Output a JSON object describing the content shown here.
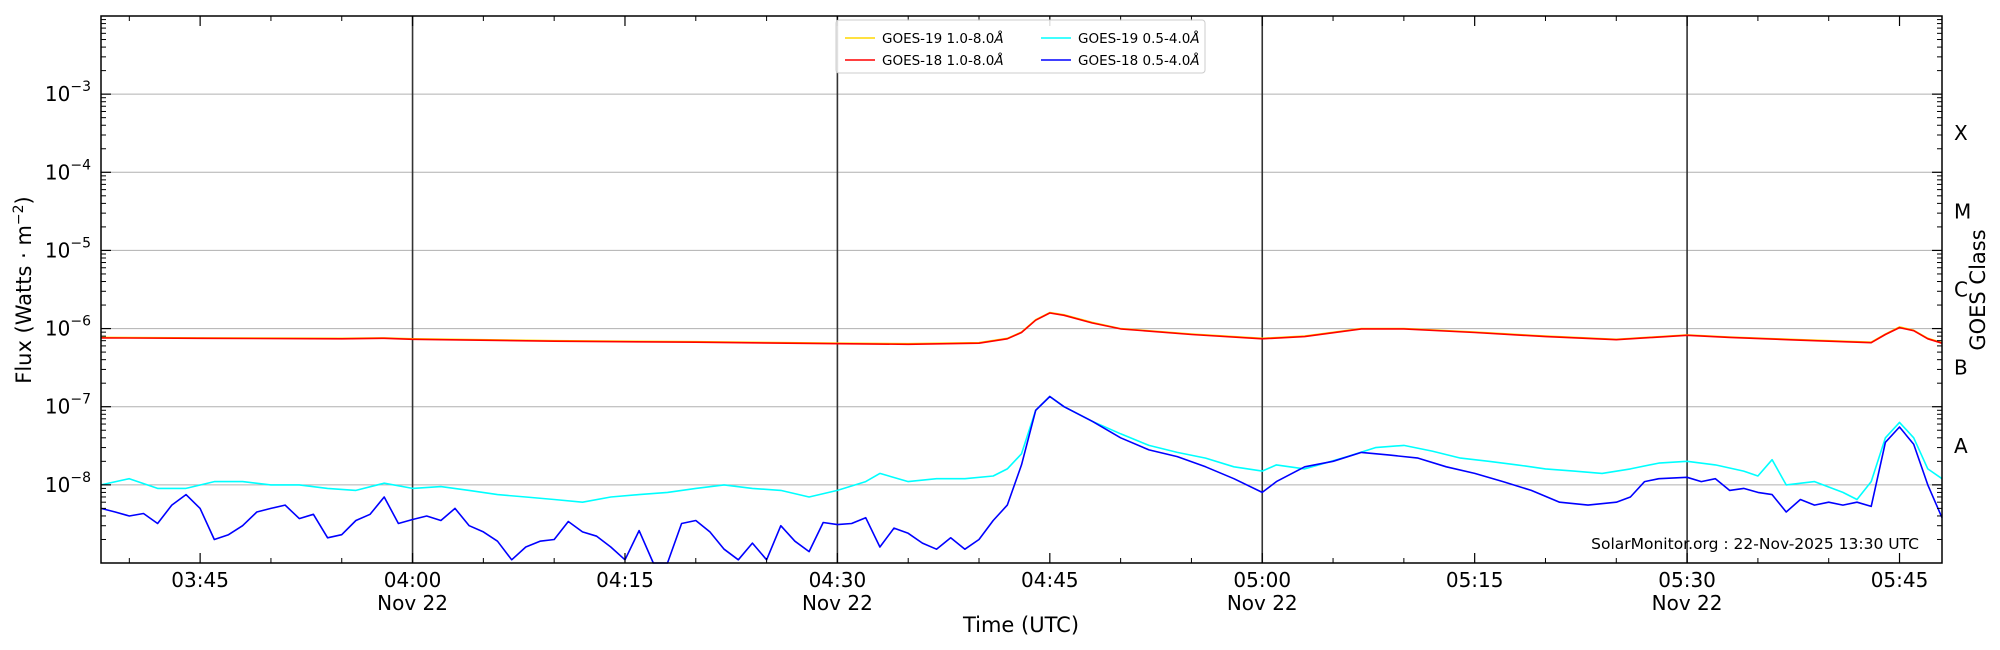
{
  "chart_data": {
    "type": "line",
    "xlabel": "Time (UTC)",
    "ylabel": "Flux (Watts · m",
    "ylabel_sup": "−2",
    "ylabel_close": ")",
    "y2label": "GOES Class",
    "yscale": "log",
    "xlim": [
      "03:38",
      "05:48"
    ],
    "ylim": [
      1e-09,
      0.01
    ],
    "y_ticks": [
      {
        "value": 1e-08,
        "base": "10",
        "exp": "−8"
      },
      {
        "value": 1e-07,
        "base": "10",
        "exp": "−7"
      },
      {
        "value": 1e-06,
        "base": "10",
        "exp": "−6"
      },
      {
        "value": 1e-05,
        "base": "10",
        "exp": "−5"
      },
      {
        "value": 0.0001,
        "base": "10",
        "exp": "−4"
      },
      {
        "value": 0.001,
        "base": "10",
        "exp": "−3"
      }
    ],
    "x_ticks": [
      {
        "time": "03:45",
        "label": "03:45",
        "sub": ""
      },
      {
        "time": "04:00",
        "label": "04:00",
        "sub": "Nov 22"
      },
      {
        "time": "04:15",
        "label": "04:15",
        "sub": ""
      },
      {
        "time": "04:30",
        "label": "04:30",
        "sub": "Nov 22"
      },
      {
        "time": "04:45",
        "label": "04:45",
        "sub": ""
      },
      {
        "time": "05:00",
        "label": "05:00",
        "sub": "Nov 22"
      },
      {
        "time": "05:15",
        "label": "05:15",
        "sub": ""
      },
      {
        "time": "05:30",
        "label": "05:30",
        "sub": "Nov 22"
      },
      {
        "time": "05:45",
        "label": "05:45",
        "sub": ""
      }
    ],
    "vertical_lines": [
      "04:00",
      "04:30",
      "05:00",
      "05:30"
    ],
    "goes_classes": [
      {
        "label": "A",
        "value": 3.16e-08
      },
      {
        "label": "B",
        "value": 3.16e-07
      },
      {
        "label": "C",
        "value": 3.16e-06
      },
      {
        "label": "M",
        "value": 3.16e-05
      },
      {
        "label": "X",
        "value": 0.000316
      }
    ],
    "grid": "horizontal",
    "legend": {
      "placement": "top-center",
      "columns": 2,
      "entries": [
        {
          "label": "GOES-19 1.0-8.0",
          "unit": "Å",
          "color": "#ffd700"
        },
        {
          "label": "GOES-18 1.0-8.0",
          "unit": "Å",
          "color": "#ff0000"
        },
        {
          "label": "GOES-19 0.5-4.0",
          "unit": "Å",
          "color": "#00ffff"
        },
        {
          "label": "GOES-18 0.5-4.0",
          "unit": "Å",
          "color": "#0000ff"
        }
      ]
    },
    "credit": "SolarMonitor.org : 22-Nov-2025 13:30 UTC",
    "series": [
      {
        "name": "GOES-19 1.0-8.0Å",
        "color": "#ffd700",
        "points": [
          [
            "03:38",
            7.7e-07
          ],
          [
            "03:45",
            7.6e-07
          ],
          [
            "03:55",
            7.5e-07
          ],
          [
            "03:58",
            7.6e-07
          ],
          [
            "04:00",
            7.4e-07
          ],
          [
            "04:10",
            7e-07
          ],
          [
            "04:20",
            6.8e-07
          ],
          [
            "04:30",
            6.5e-07
          ],
          [
            "04:35",
            6.4e-07
          ],
          [
            "04:40",
            6.6e-07
          ],
          [
            "04:42",
            7.5e-07
          ],
          [
            "04:43",
            9e-07
          ],
          [
            "04:44",
            1.3e-06
          ],
          [
            "04:45",
            1.6e-06
          ],
          [
            "04:46",
            1.5e-06
          ],
          [
            "04:48",
            1.2e-06
          ],
          [
            "04:50",
            1e-06
          ],
          [
            "04:55",
            8.5e-07
          ],
          [
            "05:00",
            7.5e-07
          ],
          [
            "05:03",
            8e-07
          ],
          [
            "05:07",
            1e-06
          ],
          [
            "05:10",
            1e-06
          ],
          [
            "05:15",
            9e-07
          ],
          [
            "05:20",
            8e-07
          ],
          [
            "05:25",
            7.3e-07
          ],
          [
            "05:30",
            8.3e-07
          ],
          [
            "05:33",
            7.8e-07
          ],
          [
            "05:38",
            7.2e-07
          ],
          [
            "05:43",
            6.7e-07
          ],
          [
            "05:44",
            8.5e-07
          ],
          [
            "05:45",
            1.05e-06
          ],
          [
            "05:46",
            9.5e-07
          ],
          [
            "05:47",
            7.5e-07
          ],
          [
            "05:48",
            6.6e-07
          ]
        ]
      },
      {
        "name": "GOES-18 1.0-8.0Å",
        "color": "#ff0000",
        "points": [
          [
            "03:38",
            7.6e-07
          ],
          [
            "03:45",
            7.5e-07
          ],
          [
            "03:55",
            7.4e-07
          ],
          [
            "03:58",
            7.5e-07
          ],
          [
            "04:00",
            7.3e-07
          ],
          [
            "04:10",
            6.9e-07
          ],
          [
            "04:20",
            6.7e-07
          ],
          [
            "04:30",
            6.4e-07
          ],
          [
            "04:35",
            6.3e-07
          ],
          [
            "04:40",
            6.5e-07
          ],
          [
            "04:42",
            7.4e-07
          ],
          [
            "04:43",
            8.9e-07
          ],
          [
            "04:44",
            1.28e-06
          ],
          [
            "04:45",
            1.58e-06
          ],
          [
            "04:46",
            1.48e-06
          ],
          [
            "04:48",
            1.18e-06
          ],
          [
            "04:50",
            9.9e-07
          ],
          [
            "04:55",
            8.4e-07
          ],
          [
            "05:00",
            7.4e-07
          ],
          [
            "05:03",
            7.9e-07
          ],
          [
            "05:07",
            9.9e-07
          ],
          [
            "05:10",
            9.9e-07
          ],
          [
            "05:15",
            8.9e-07
          ],
          [
            "05:20",
            7.9e-07
          ],
          [
            "05:25",
            7.2e-07
          ],
          [
            "05:30",
            8.2e-07
          ],
          [
            "05:33",
            7.7e-07
          ],
          [
            "05:38",
            7.1e-07
          ],
          [
            "05:43",
            6.6e-07
          ],
          [
            "05:44",
            8.4e-07
          ],
          [
            "05:45",
            1.03e-06
          ],
          [
            "05:46",
            9.4e-07
          ],
          [
            "05:47",
            7.4e-07
          ],
          [
            "05:48",
            6.5e-07
          ]
        ]
      },
      {
        "name": "GOES-19 0.5-4.0Å",
        "color": "#00ffff",
        "points": [
          [
            "03:38",
            1e-08
          ],
          [
            "03:40",
            1.2e-08
          ],
          [
            "03:42",
            9e-09
          ],
          [
            "03:44",
            9e-09
          ],
          [
            "03:46",
            1.1e-08
          ],
          [
            "03:48",
            1.1e-08
          ],
          [
            "03:50",
            1e-08
          ],
          [
            "03:52",
            1e-08
          ],
          [
            "03:54",
            9e-09
          ],
          [
            "03:56",
            8.5e-09
          ],
          [
            "03:58",
            1.05e-08
          ],
          [
            "04:00",
            9e-09
          ],
          [
            "04:02",
            9.5e-09
          ],
          [
            "04:04",
            8.5e-09
          ],
          [
            "04:06",
            7.5e-09
          ],
          [
            "04:08",
            7e-09
          ],
          [
            "04:10",
            6.5e-09
          ],
          [
            "04:12",
            6e-09
          ],
          [
            "04:14",
            7e-09
          ],
          [
            "04:16",
            7.5e-09
          ],
          [
            "04:18",
            8e-09
          ],
          [
            "04:20",
            9e-09
          ],
          [
            "04:22",
            1e-08
          ],
          [
            "04:24",
            9e-09
          ],
          [
            "04:26",
            8.5e-09
          ],
          [
            "04:28",
            7e-09
          ],
          [
            "04:30",
            8.5e-09
          ],
          [
            "04:32",
            1.1e-08
          ],
          [
            "04:33",
            1.4e-08
          ],
          [
            "04:35",
            1.1e-08
          ],
          [
            "04:37",
            1.2e-08
          ],
          [
            "04:39",
            1.2e-08
          ],
          [
            "04:41",
            1.3e-08
          ],
          [
            "04:42",
            1.6e-08
          ],
          [
            "04:43",
            2.5e-08
          ],
          [
            "04:44",
            9e-08
          ],
          [
            "04:45",
            1.35e-07
          ],
          [
            "04:46",
            1e-07
          ],
          [
            "04:48",
            6.5e-08
          ],
          [
            "04:50",
            4.5e-08
          ],
          [
            "04:52",
            3.2e-08
          ],
          [
            "04:54",
            2.6e-08
          ],
          [
            "04:56",
            2.2e-08
          ],
          [
            "04:58",
            1.7e-08
          ],
          [
            "05:00",
            1.5e-08
          ],
          [
            "05:01",
            1.8e-08
          ],
          [
            "05:03",
            1.6e-08
          ],
          [
            "05:04",
            1.8e-08
          ],
          [
            "05:06",
            2.3e-08
          ],
          [
            "05:08",
            3e-08
          ],
          [
            "05:10",
            3.2e-08
          ],
          [
            "05:12",
            2.7e-08
          ],
          [
            "05:14",
            2.2e-08
          ],
          [
            "05:16",
            2e-08
          ],
          [
            "05:18",
            1.8e-08
          ],
          [
            "05:20",
            1.6e-08
          ],
          [
            "05:22",
            1.5e-08
          ],
          [
            "05:24",
            1.4e-08
          ],
          [
            "05:26",
            1.6e-08
          ],
          [
            "05:28",
            1.9e-08
          ],
          [
            "05:30",
            2e-08
          ],
          [
            "05:32",
            1.8e-08
          ],
          [
            "05:34",
            1.5e-08
          ],
          [
            "05:35",
            1.3e-08
          ],
          [
            "05:36",
            2.1e-08
          ],
          [
            "05:37",
            1e-08
          ],
          [
            "05:39",
            1.1e-08
          ],
          [
            "05:41",
            8e-09
          ],
          [
            "05:42",
            6.5e-09
          ],
          [
            "05:43",
            1.1e-08
          ],
          [
            "05:44",
            4e-08
          ],
          [
            "05:45",
            6.3e-08
          ],
          [
            "05:46",
            4e-08
          ],
          [
            "05:47",
            1.6e-08
          ],
          [
            "05:48",
            1.2e-08
          ]
        ]
      },
      {
        "name": "GOES-18 0.5-4.0Å",
        "color": "#0000ff",
        "points": [
          [
            "03:38",
            5e-09
          ],
          [
            "03:39",
            4.5e-09
          ],
          [
            "03:40",
            4e-09
          ],
          [
            "03:41",
            4.3e-09
          ],
          [
            "03:42",
            3.2e-09
          ],
          [
            "03:43",
            5.5e-09
          ],
          [
            "03:44",
            7.5e-09
          ],
          [
            "03:45",
            5e-09
          ],
          [
            "03:46",
            2e-09
          ],
          [
            "03:47",
            2.3e-09
          ],
          [
            "03:48",
            3e-09
          ],
          [
            "03:49",
            4.5e-09
          ],
          [
            "03:50",
            5e-09
          ],
          [
            "03:51",
            5.5e-09
          ],
          [
            "03:52",
            3.7e-09
          ],
          [
            "03:53",
            4.2e-09
          ],
          [
            "03:54",
            2.1e-09
          ],
          [
            "03:55",
            2.3e-09
          ],
          [
            "03:56",
            3.5e-09
          ],
          [
            "03:57",
            4.2e-09
          ],
          [
            "03:58",
            7e-09
          ],
          [
            "03:59",
            3.2e-09
          ],
          [
            "04:00",
            3.6e-09
          ],
          [
            "04:01",
            4e-09
          ],
          [
            "04:02",
            3.5e-09
          ],
          [
            "04:03",
            5e-09
          ],
          [
            "04:04",
            3e-09
          ],
          [
            "04:05",
            2.5e-09
          ],
          [
            "04:06",
            1.9e-09
          ],
          [
            "04:07",
            1.1e-09
          ],
          [
            "04:08",
            1.6e-09
          ],
          [
            "04:09",
            1.9e-09
          ],
          [
            "04:10",
            2e-09
          ],
          [
            "04:11",
            3.4e-09
          ],
          [
            "04:12",
            2.5e-09
          ],
          [
            "04:13",
            2.2e-09
          ],
          [
            "04:14",
            1.6e-09
          ],
          [
            "04:15",
            1.1e-09
          ],
          [
            "04:16",
            2.6e-09
          ],
          [
            "04:17",
            1e-09
          ],
          [
            "04:18",
            1e-09
          ],
          [
            "04:19",
            3.2e-09
          ],
          [
            "04:20",
            3.5e-09
          ],
          [
            "04:21",
            2.5e-09
          ],
          [
            "04:22",
            1.5e-09
          ],
          [
            "04:23",
            1.1e-09
          ],
          [
            "04:24",
            1.8e-09
          ],
          [
            "04:25",
            1.1e-09
          ],
          [
            "04:26",
            3e-09
          ],
          [
            "04:27",
            1.9e-09
          ],
          [
            "04:28",
            1.4e-09
          ],
          [
            "04:29",
            3.3e-09
          ],
          [
            "04:30",
            3.1e-09
          ],
          [
            "04:31",
            3.2e-09
          ],
          [
            "04:32",
            3.8e-09
          ],
          [
            "04:33",
            1.6e-09
          ],
          [
            "04:34",
            2.8e-09
          ],
          [
            "04:35",
            2.4e-09
          ],
          [
            "04:36",
            1.8e-09
          ],
          [
            "04:37",
            1.5e-09
          ],
          [
            "04:38",
            2.1e-09
          ],
          [
            "04:39",
            1.5e-09
          ],
          [
            "04:40",
            2e-09
          ],
          [
            "04:41",
            3.5e-09
          ],
          [
            "04:42",
            5.5e-09
          ],
          [
            "04:43",
            1.8e-08
          ],
          [
            "04:44",
            9e-08
          ],
          [
            "04:45",
            1.35e-07
          ],
          [
            "04:46",
            1e-07
          ],
          [
            "04:48",
            6.5e-08
          ],
          [
            "04:50",
            4e-08
          ],
          [
            "04:52",
            2.8e-08
          ],
          [
            "04:54",
            2.3e-08
          ],
          [
            "04:56",
            1.7e-08
          ],
          [
            "04:58",
            1.2e-08
          ],
          [
            "05:00",
            8e-09
          ],
          [
            "05:01",
            1.1e-08
          ],
          [
            "05:03",
            1.7e-08
          ],
          [
            "05:05",
            2e-08
          ],
          [
            "05:07",
            2.6e-08
          ],
          [
            "05:09",
            2.4e-08
          ],
          [
            "05:11",
            2.2e-08
          ],
          [
            "05:13",
            1.7e-08
          ],
          [
            "05:15",
            1.4e-08
          ],
          [
            "05:17",
            1.1e-08
          ],
          [
            "05:19",
            8.5e-09
          ],
          [
            "05:21",
            6e-09
          ],
          [
            "05:23",
            5.5e-09
          ],
          [
            "05:25",
            6e-09
          ],
          [
            "05:26",
            7e-09
          ],
          [
            "05:27",
            1.1e-08
          ],
          [
            "05:28",
            1.2e-08
          ],
          [
            "05:30",
            1.25e-08
          ],
          [
            "05:31",
            1.1e-08
          ],
          [
            "05:32",
            1.2e-08
          ],
          [
            "05:33",
            8.5e-09
          ],
          [
            "05:34",
            9e-09
          ],
          [
            "05:35",
            8e-09
          ],
          [
            "05:36",
            7.5e-09
          ],
          [
            "05:37",
            4.5e-09
          ],
          [
            "05:38",
            6.5e-09
          ],
          [
            "05:39",
            5.5e-09
          ],
          [
            "05:40",
            6e-09
          ],
          [
            "05:41",
            5.5e-09
          ],
          [
            "05:42",
            6e-09
          ],
          [
            "05:43",
            5.3e-09
          ],
          [
            "05:44",
            3.5e-08
          ],
          [
            "05:45",
            5.5e-08
          ],
          [
            "05:46",
            3.3e-08
          ],
          [
            "05:47",
            1e-08
          ],
          [
            "05:48",
            3.8e-09
          ]
        ]
      }
    ]
  }
}
